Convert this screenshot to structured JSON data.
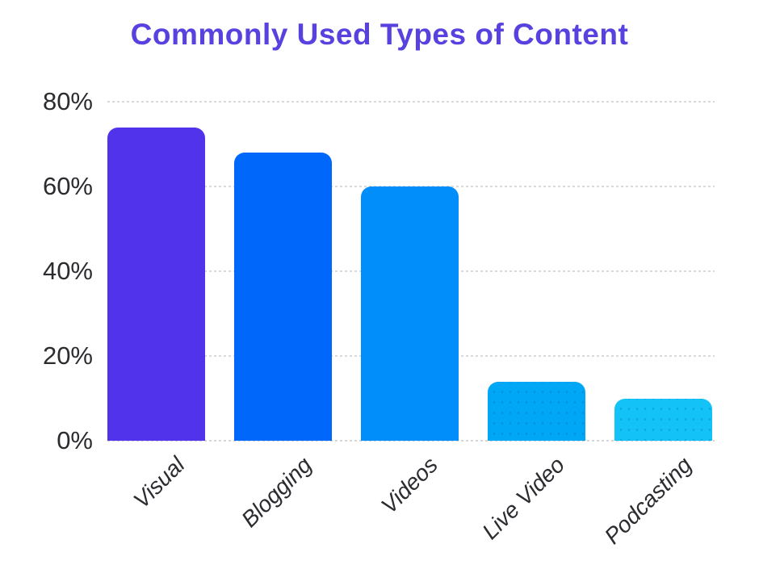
{
  "title": {
    "text": "Commonly Used Types of Content"
  },
  "chart_data": {
    "type": "bar",
    "title": "Commonly Used Types of Content",
    "categories": [
      "Visual",
      "Blogging",
      "Videos",
      "Live Video",
      "Podcasting"
    ],
    "values": [
      74,
      68,
      60,
      14,
      10
    ],
    "unit": "%",
    "xlabel": "",
    "ylabel": "",
    "ylim": [
      0,
      80
    ],
    "y_ticks": [
      0,
      20,
      40,
      60,
      80
    ],
    "y_tick_labels": [
      "0%",
      "20%",
      "40%",
      "60%",
      "80%"
    ],
    "grid": true,
    "legend": false,
    "title_color": "#5742DF",
    "bar_colors": [
      "#5133EC",
      "#0067FB",
      "#018DFA",
      "#00A7F7",
      "#13C3F8"
    ],
    "grid_color": "#D9D9D9",
    "axis_text_color": "#2B2B30"
  }
}
